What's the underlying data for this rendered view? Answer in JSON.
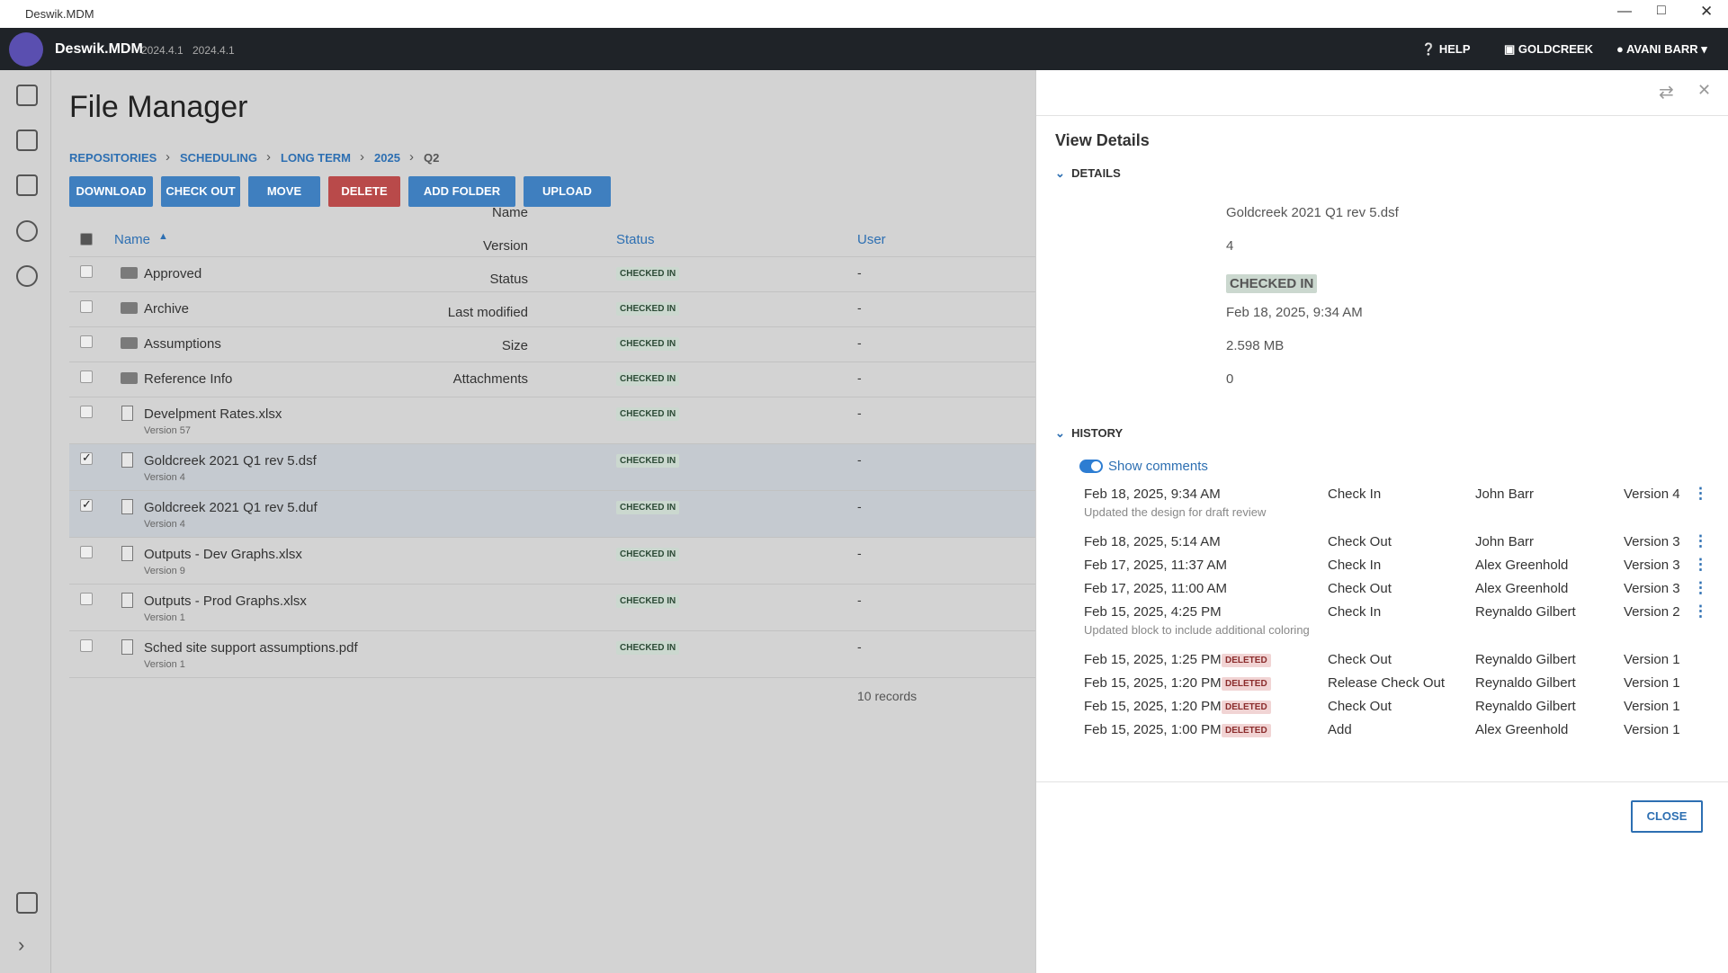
{
  "window": {
    "title": "Deswik.MDM"
  },
  "header": {
    "app": "Deswik.MDM",
    "versions": [
      "2024.4.1",
      "2024.4.1"
    ],
    "help": "HELP",
    "workspace": "GOLDCREEK",
    "user": "AVANI BARR"
  },
  "page": {
    "title": "File Manager",
    "breadcrumbs": [
      "REPOSITORIES",
      "SCHEDULING",
      "LONG TERM",
      "2025",
      "Q2"
    ],
    "buttons": [
      "DOWNLOAD",
      "CHECK OUT",
      "MOVE",
      "DELETE",
      "ADD FOLDER",
      "UPLOAD"
    ],
    "columns": {
      "name": "Name",
      "status": "Status",
      "user": "User"
    },
    "rows": [
      {
        "name": "Approved",
        "status": "CHECKED IN",
        "user": "-"
      },
      {
        "name": "Archive",
        "status": "CHECKED IN",
        "user": "-"
      },
      {
        "name": "Assumptions",
        "status": "CHECKED IN",
        "user": "-"
      },
      {
        "name": "Reference Info",
        "status": "CHECKED IN",
        "user": "-"
      },
      {
        "name": "Develpment Rates.xlsx",
        "version": "Version 57",
        "status": "CHECKED IN",
        "user": "-"
      },
      {
        "name": "Goldcreek 2021 Q1 rev 5.dsf",
        "version": "Version 4",
        "status": "CHECKED IN",
        "user": "-",
        "selected": true
      },
      {
        "name": "Goldcreek 2021 Q1 rev 5.duf",
        "version": "Version 4",
        "status": "CHECKED IN",
        "user": "-",
        "selected": true
      },
      {
        "name": "Outputs - Dev Graphs.xlsx",
        "version": "Version 9",
        "status": "CHECKED IN",
        "user": "-"
      },
      {
        "name": "Outputs - Prod Graphs.xlsx",
        "version": "Version 1",
        "status": "CHECKED IN",
        "user": "-"
      },
      {
        "name": "Sched site support assumptions.pdf",
        "version": "Version 1",
        "status": "CHECKED IN",
        "user": "-"
      }
    ],
    "records": "10 records"
  },
  "details": {
    "title": "View Details",
    "section": "DETAILS",
    "fields": [
      {
        "label": "Name",
        "value": "Goldcreek 2021 Q1 rev 5.dsf"
      },
      {
        "label": "Version",
        "value": "4"
      },
      {
        "label": "Status",
        "value": "CHECKED IN"
      },
      {
        "label": "Last modified",
        "value": "Feb 18, 2025, 9:34 AM"
      },
      {
        "label": "Size",
        "value": "2.598 MB"
      },
      {
        "label": "Attachments",
        "value": "0"
      }
    ],
    "history_title": "HISTORY",
    "show_comments": "Show comments",
    "history": [
      {
        "date": "Feb 18, 2025, 9:34 AM",
        "action": "Check In",
        "user": "John Barr",
        "version": "Version 4",
        "comment": "Updated the design for draft review"
      },
      {
        "date": "Feb 18, 2025, 5:14 AM",
        "action": "Check Out",
        "user": "John Barr",
        "version": "Version 3"
      },
      {
        "date": "Feb 17, 2025, 11:37 AM",
        "action": "Check In",
        "user": "Alex Greenhold",
        "version": "Version 3"
      },
      {
        "date": "Feb 17, 2025, 11:00 AM",
        "action": "Check Out",
        "user": "Alex Greenhold",
        "version": "Version 3"
      },
      {
        "date": "Feb 15, 2025, 4:25 PM",
        "action": "Check In",
        "user": "Reynaldo Gilbert",
        "version": "Version 2",
        "comment": "Updated block to include additional coloring"
      },
      {
        "date": "Feb 15, 2025, 1:25 PM",
        "badge": "DELETED",
        "action": "Check Out",
        "user": "Reynaldo Gilbert",
        "version": "Version 1"
      },
      {
        "date": "Feb 15, 2025, 1:20 PM",
        "badge": "DELETED",
        "action": "Release Check Out",
        "user": "Reynaldo Gilbert",
        "version": "Version 1"
      },
      {
        "date": "Feb 15, 2025, 1:20 PM",
        "badge": "DELETED",
        "action": "Check Out",
        "user": "Reynaldo Gilbert",
        "version": "Version 1"
      },
      {
        "date": "Feb 15, 2025, 1:00 PM",
        "badge": "DELETED",
        "action": "Add",
        "user": "Alex Greenhold",
        "version": "Version 1"
      }
    ],
    "close": "CLOSE"
  }
}
